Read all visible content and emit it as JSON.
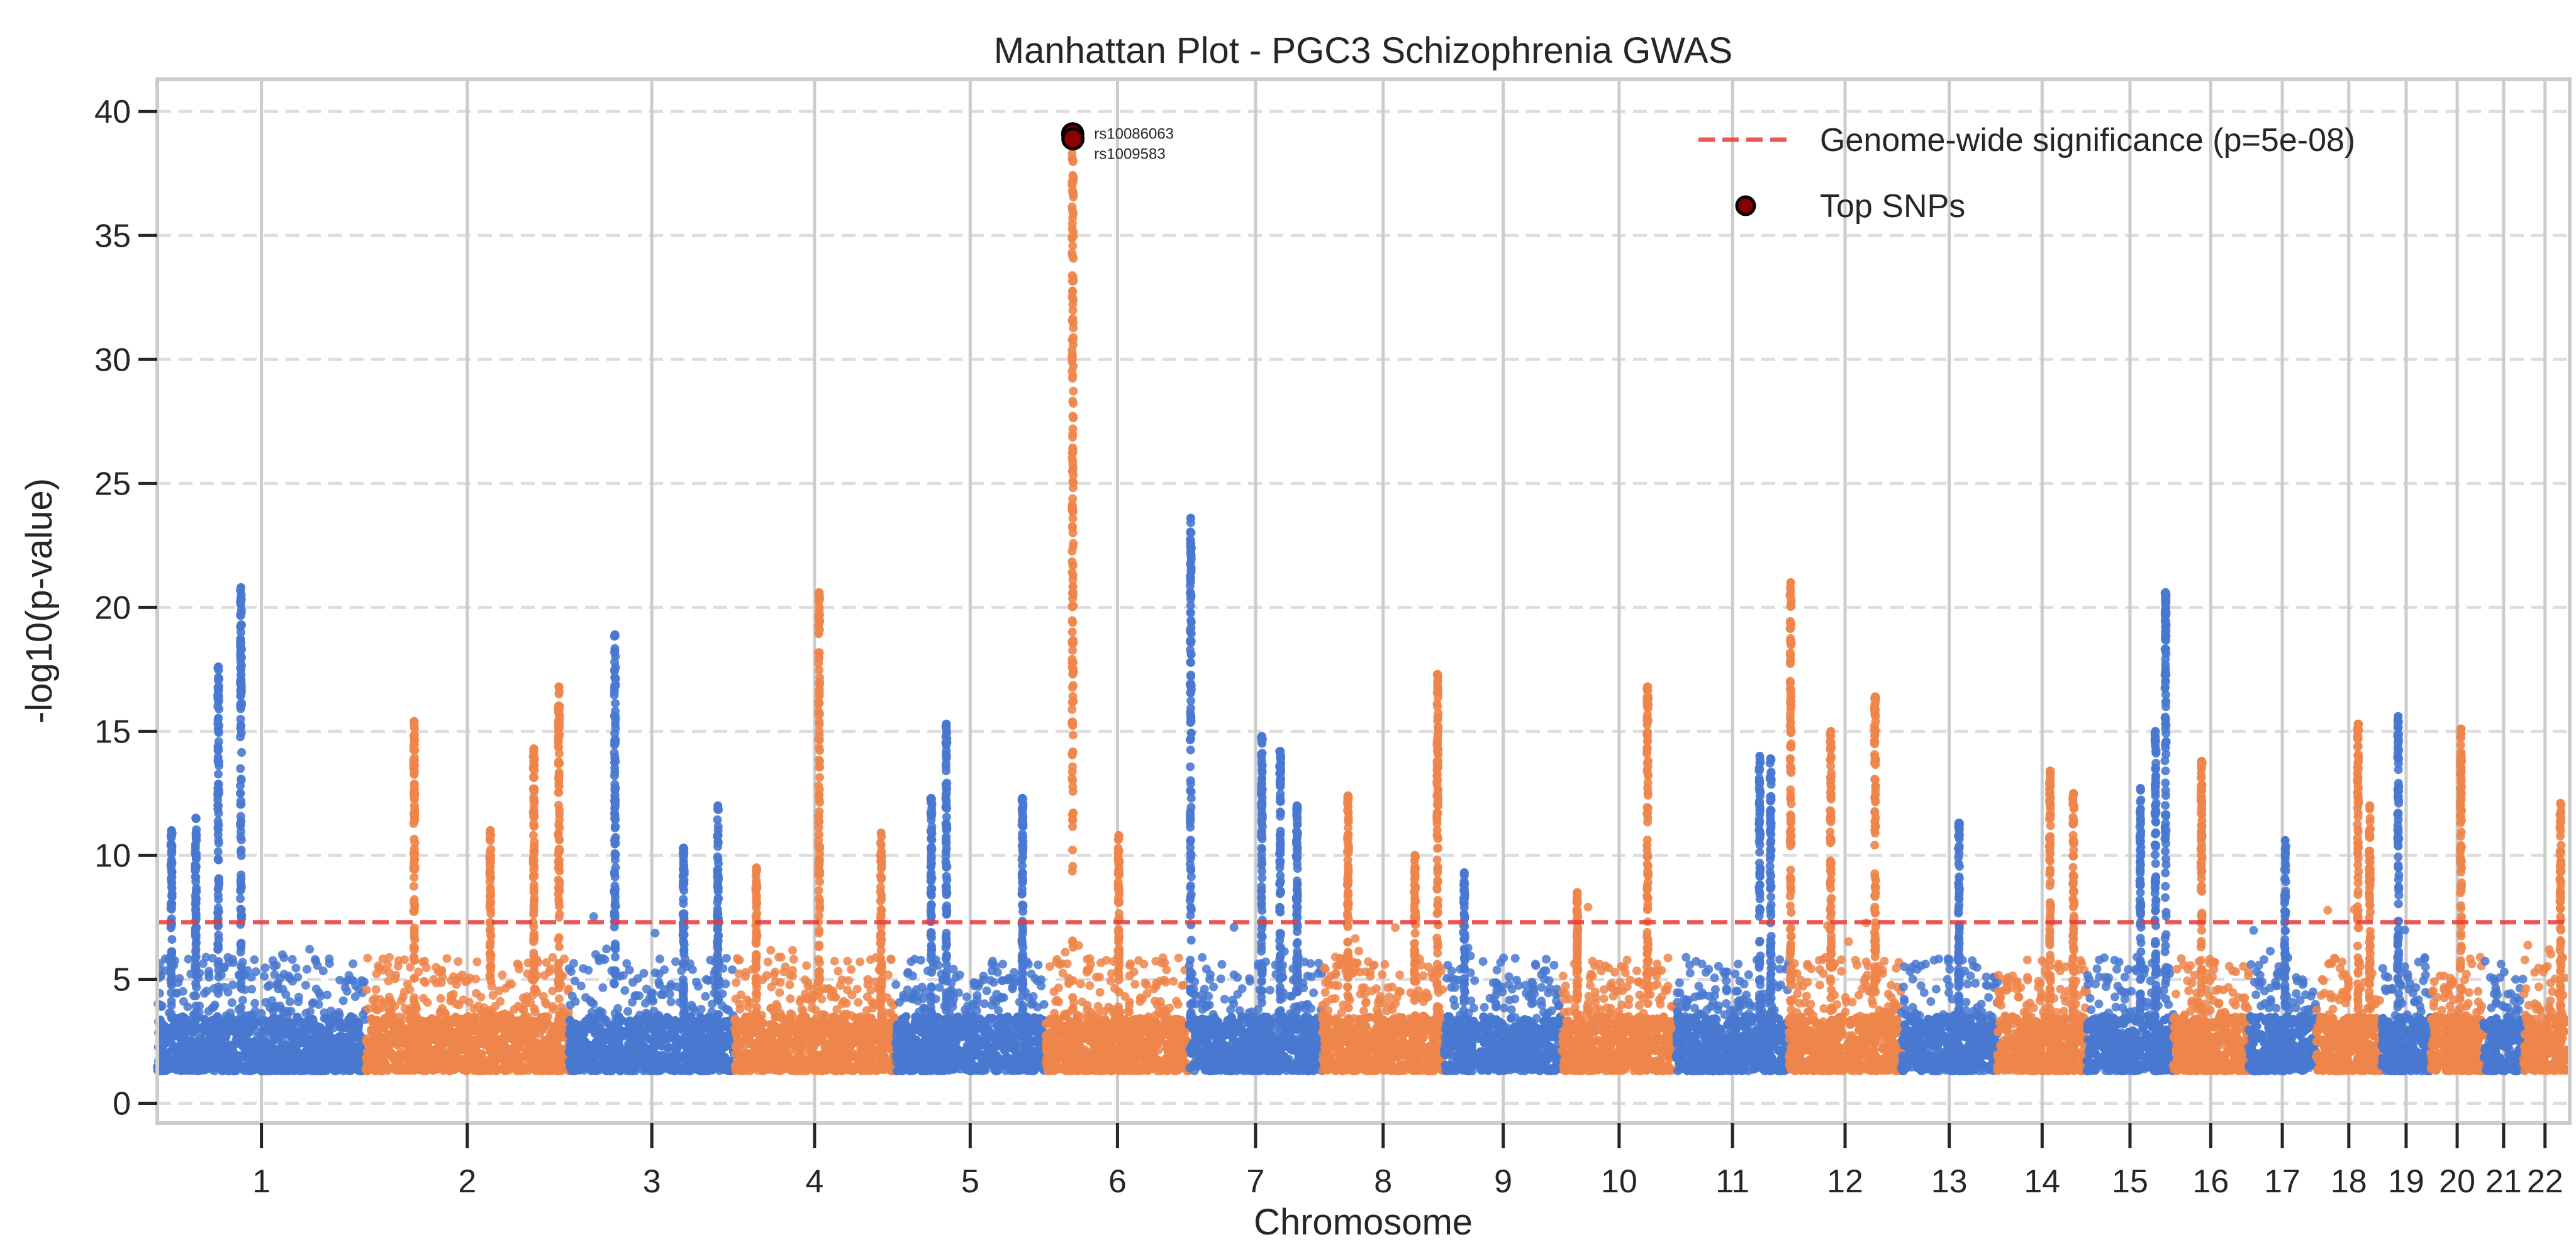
{
  "chart_data": {
    "type": "scatter",
    "title": "Manhattan Plot - PGC3 Schizophrenia GWAS",
    "xlabel": "Chromosome",
    "ylabel": "-log10(p-value)",
    "ylim": [
      -0.8,
      41.3
    ],
    "yticks": [
      0,
      5,
      10,
      15,
      20,
      25,
      30,
      35,
      40
    ],
    "grid": {
      "horizontal": "dashed",
      "vertical_at_chromosome_ticks": true
    },
    "legend_position": "top-right",
    "colors": {
      "odd_chromosomes": "#4878d0",
      "even_chromosomes": "#ee854a",
      "significance_line": "#e8393a",
      "top_snp_fill": "#8b0000",
      "top_snp_edge": "#000000"
    },
    "significance_threshold": 7.3,
    "legend": [
      {
        "label": "Genome-wide significance (p=5e-08)",
        "kind": "dashed-line"
      },
      {
        "label": "Top SNPs",
        "kind": "marker"
      }
    ],
    "chromosomes": [
      {
        "label": "1",
        "length": 249
      },
      {
        "label": "2",
        "length": 243
      },
      {
        "label": "3",
        "length": 198
      },
      {
        "label": "4",
        "length": 191
      },
      {
        "label": "5",
        "length": 181
      },
      {
        "label": "6",
        "length": 171
      },
      {
        "label": "7",
        "length": 159
      },
      {
        "label": "8",
        "length": 146
      },
      {
        "label": "9",
        "length": 141
      },
      {
        "label": "10",
        "length": 136
      },
      {
        "label": "11",
        "length": 135
      },
      {
        "label": "12",
        "length": 134
      },
      {
        "label": "13",
        "length": 115
      },
      {
        "label": "14",
        "length": 107
      },
      {
        "label": "15",
        "length": 103
      },
      {
        "label": "16",
        "length": 90
      },
      {
        "label": "17",
        "length": 81
      },
      {
        "label": "18",
        "length": 78
      },
      {
        "label": "19",
        "length": 59
      },
      {
        "label": "20",
        "length": 63
      },
      {
        "label": "21",
        "length": 48
      },
      {
        "label": "22",
        "length": 51
      }
    ],
    "baseline_min": 1.3,
    "peaks": [
      {
        "chr": 1,
        "pos": 100,
        "max": 20.8
      },
      {
        "chr": 1,
        "pos": 73,
        "max": 17.6
      },
      {
        "chr": 1,
        "pos": 17,
        "max": 11.0
      },
      {
        "chr": 1,
        "pos": 46,
        "max": 11.5
      },
      {
        "chr": 2,
        "pos": 58,
        "max": 15.4
      },
      {
        "chr": 2,
        "pos": 201,
        "max": 14.3
      },
      {
        "chr": 2,
        "pos": 231,
        "max": 16.8
      },
      {
        "chr": 2,
        "pos": 149,
        "max": 11.0
      },
      {
        "chr": 3,
        "pos": 55,
        "max": 18.9
      },
      {
        "chr": 3,
        "pos": 178,
        "max": 12.0
      },
      {
        "chr": 3,
        "pos": 137,
        "max": 10.3
      },
      {
        "chr": 4,
        "pos": 101,
        "max": 20.6
      },
      {
        "chr": 4,
        "pos": 175,
        "max": 10.9
      },
      {
        "chr": 4,
        "pos": 26,
        "max": 9.5
      },
      {
        "chr": 5,
        "pos": 62,
        "max": 15.3
      },
      {
        "chr": 5,
        "pos": 153,
        "max": 12.3
      },
      {
        "chr": 5,
        "pos": 44,
        "max": 12.3
      },
      {
        "chr": 6,
        "pos": 32,
        "max": 39.0
      },
      {
        "chr": 6,
        "pos": 87,
        "max": 10.8
      },
      {
        "chr": 7,
        "pos": 2,
        "max": 23.6
      },
      {
        "chr": 7,
        "pos": 87,
        "max": 14.8
      },
      {
        "chr": 7,
        "pos": 109,
        "max": 14.2
      },
      {
        "chr": 7,
        "pos": 129,
        "max": 12.0
      },
      {
        "chr": 8,
        "pos": 31,
        "max": 12.4
      },
      {
        "chr": 8,
        "pos": 138,
        "max": 17.3
      },
      {
        "chr": 8,
        "pos": 111,
        "max": 10.0
      },
      {
        "chr": 9,
        "pos": 24,
        "max": 9.3
      },
      {
        "chr": 10,
        "pos": 102,
        "max": 16.8
      },
      {
        "chr": 10,
        "pos": 18,
        "max": 8.5
      },
      {
        "chr": 11,
        "pos": 100,
        "max": 14.0
      },
      {
        "chr": 11,
        "pos": 113,
        "max": 13.9
      },
      {
        "chr": 12,
        "pos": 2,
        "max": 21.0
      },
      {
        "chr": 12,
        "pos": 103,
        "max": 16.4
      },
      {
        "chr": 12,
        "pos": 50,
        "max": 15.0
      },
      {
        "chr": 13,
        "pos": 69,
        "max": 11.3
      },
      {
        "chr": 14,
        "pos": 63,
        "max": 13.4
      },
      {
        "chr": 14,
        "pos": 91,
        "max": 12.5
      },
      {
        "chr": 15,
        "pos": 82,
        "max": 15.0
      },
      {
        "chr": 15,
        "pos": 94,
        "max": 20.6
      },
      {
        "chr": 15,
        "pos": 64,
        "max": 12.7
      },
      {
        "chr": 16,
        "pos": 34,
        "max": 13.8
      },
      {
        "chr": 17,
        "pos": 44,
        "max": 10.6
      },
      {
        "chr": 18,
        "pos": 50,
        "max": 15.3
      },
      {
        "chr": 18,
        "pos": 64,
        "max": 12.0
      },
      {
        "chr": 19,
        "pos": 20,
        "max": 15.6
      },
      {
        "chr": 20,
        "pos": 36,
        "max": 15.1
      },
      {
        "chr": 22,
        "pos": 44,
        "max": 12.1
      }
    ],
    "top_snps": [
      {
        "chr": 6,
        "pos": 32,
        "value": 39.1,
        "label": "rs10086063"
      },
      {
        "chr": 6,
        "pos": 32.3,
        "value": 38.9,
        "label": "rs1009583"
      }
    ]
  }
}
